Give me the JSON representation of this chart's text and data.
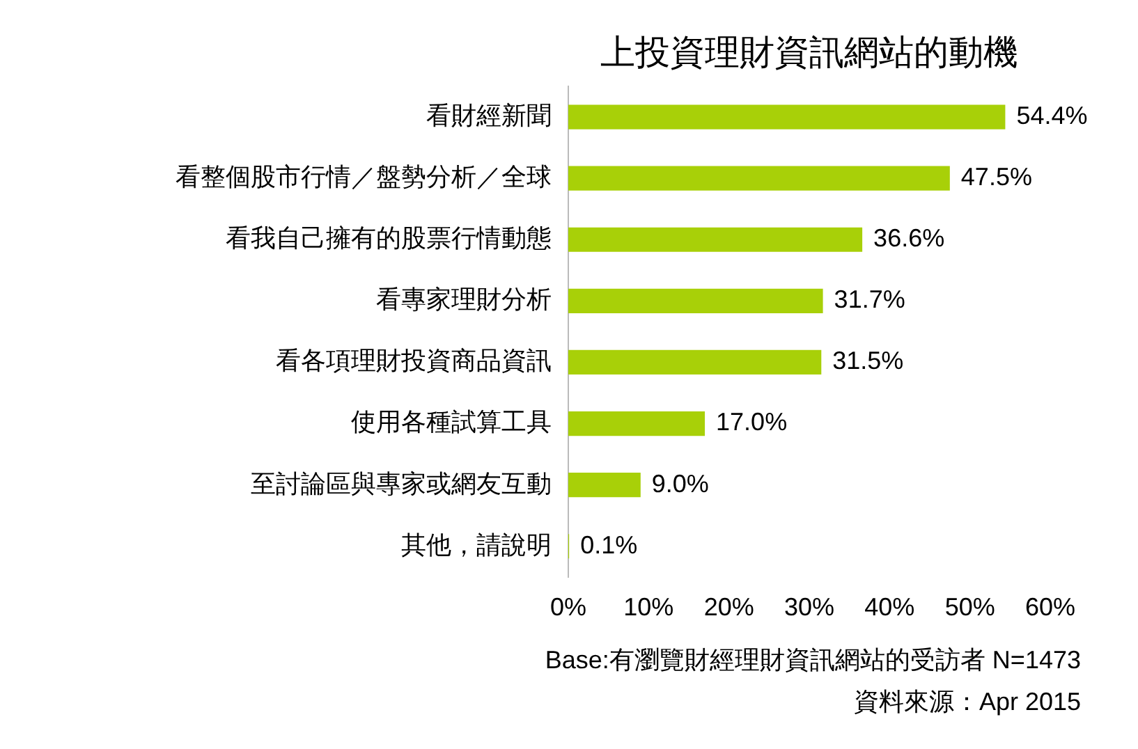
{
  "chart_data": {
    "type": "bar",
    "orientation": "horizontal",
    "title": "上投資理財資訊網站的動機",
    "categories": [
      "看財經新聞",
      "看整個股市行情／盤勢分析／全球",
      "看我自己擁有的股票行情動態",
      "看專家理財分析",
      "看各項理財投資商品資訊",
      "使用各種試算工具",
      "至討論區與專家或網友互動",
      "其他，請說明"
    ],
    "values": [
      54.4,
      47.5,
      36.6,
      31.7,
      31.5,
      17.0,
      9.0,
      0.1
    ],
    "value_labels": [
      "54.4%",
      "47.5%",
      "36.6%",
      "31.7%",
      "31.5%",
      "17.0%",
      "9.0%",
      "0.1%"
    ],
    "color": "#a8d008",
    "xlim": [
      0,
      60
    ],
    "xticks": [
      {
        "value": 0,
        "label": "0%"
      },
      {
        "value": 10,
        "label": "10%"
      },
      {
        "value": 20,
        "label": "20%"
      },
      {
        "value": 30,
        "label": "30%"
      },
      {
        "value": 40,
        "label": "40%"
      },
      {
        "value": 50,
        "label": "50%"
      },
      {
        "value": 60,
        "label": "60%"
      }
    ],
    "grid": false,
    "legend": false,
    "annotations": [
      "Base:有瀏覽財經理財資訊網站的受訪者 N=1473",
      "資料來源：Apr 2015"
    ]
  }
}
